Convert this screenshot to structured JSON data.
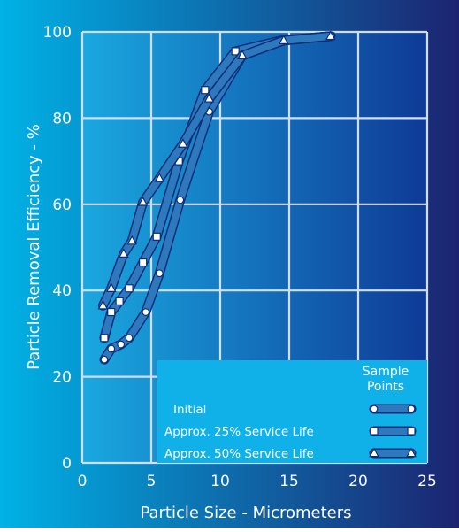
{
  "chart_data": {
    "type": "line",
    "xlabel": "Particle Size - Micrometers",
    "ylabel": "Particle Removal Efficiency - %",
    "xlim": [
      0,
      25
    ],
    "ylim": [
      0,
      100
    ],
    "xticks": [
      0,
      5,
      10,
      15,
      20,
      25
    ],
    "yticks": [
      0,
      20,
      40,
      60,
      80,
      100
    ],
    "xtick_labels": [
      "0",
      "5",
      "10",
      "15",
      "20",
      "25"
    ],
    "ytick_labels": [
      "0",
      "20",
      "40",
      "60",
      "80",
      "100"
    ],
    "grid": true,
    "legend_title": "Sample\nPoints",
    "legend_placement": "bottom-right",
    "series": [
      {
        "name": "Initial",
        "marker": "circle",
        "x": [
          1.6,
          2.1,
          2.8,
          3.4,
          4.6,
          5.6,
          7.1,
          9.2,
          11.6,
          14.6,
          18.0
        ],
        "y": [
          24,
          26.5,
          27.5,
          29,
          35,
          44,
          61,
          81.5,
          94.5,
          98,
          99
        ]
      },
      {
        "name": "Approx. 25% Service Life",
        "marker": "square",
        "x": [
          1.6,
          2.1,
          2.7,
          3.4,
          4.4,
          5.4,
          7.0,
          8.9,
          11.1,
          14.4,
          18.0
        ],
        "y": [
          29,
          35,
          37.5,
          40.5,
          46.5,
          52.5,
          70,
          86.5,
          95.5,
          98,
          99
        ]
      },
      {
        "name": "Approx. 50% Service Life",
        "marker": "triangle",
        "x": [
          1.5,
          2.1,
          3.0,
          3.6,
          4.4,
          5.6,
          7.3,
          9.2,
          11.6,
          14.6,
          18.0
        ],
        "y": [
          36.5,
          40.5,
          48.5,
          51.5,
          60.5,
          66,
          74,
          84.5,
          94.5,
          98,
          99
        ]
      }
    ],
    "colors": {
      "background_left": "#00b2e6",
      "background_right": "#1c2470",
      "plot_left": "#1aa8e0",
      "plot_right": "#0e3a96",
      "grid": "#d2deee",
      "series_line": "#2e78be",
      "series_line_edge": "#0c2f78",
      "legend_bg": "#0fb1e8",
      "text": "#ffffff"
    }
  }
}
